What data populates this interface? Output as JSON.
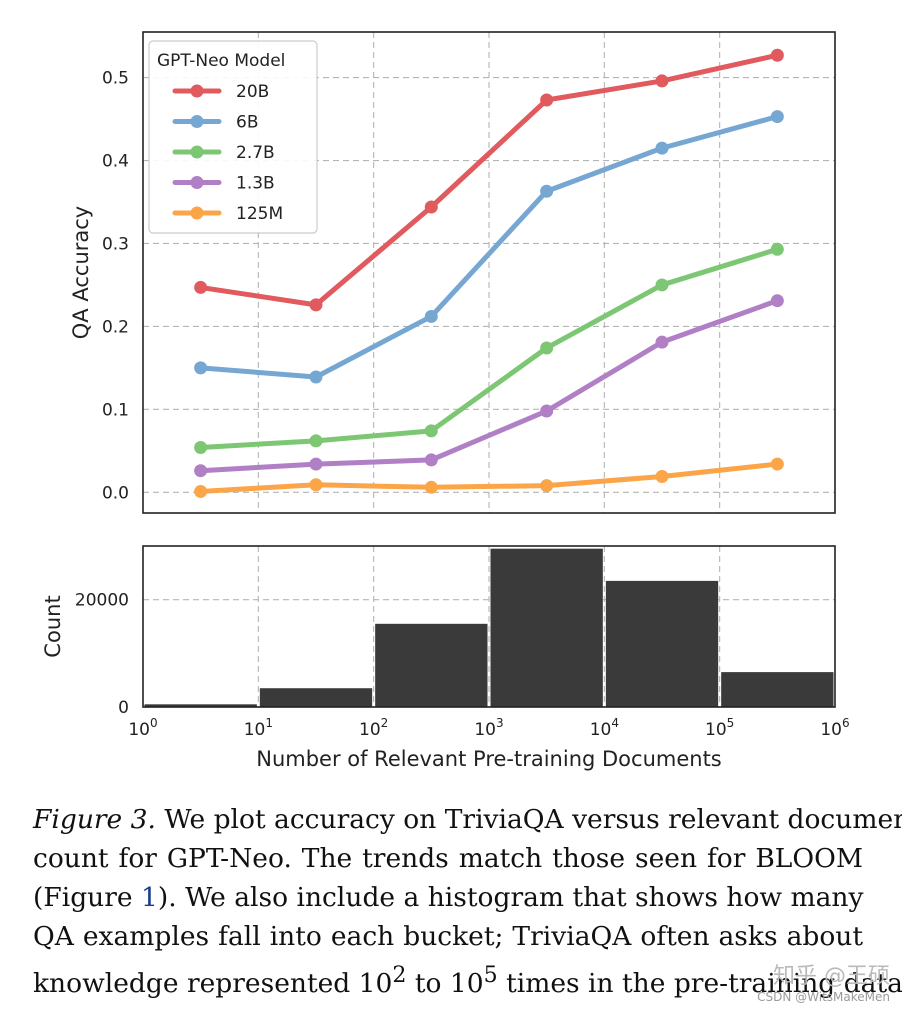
{
  "chart_data": [
    {
      "type": "line",
      "ylabel": "QA Accuracy",
      "ylim": [
        -0.025,
        0.555
      ],
      "yticks": [
        0.0,
        0.1,
        0.2,
        0.3,
        0.4,
        0.5
      ],
      "ytick_labels": [
        "0.0",
        "0.1",
        "0.2",
        "0.3",
        "0.4",
        "0.5"
      ],
      "xscale": "log",
      "x": [
        3.16,
        31.6,
        316,
        3162,
        31623,
        316228
      ],
      "grid": true,
      "legend": {
        "title": "GPT-Neo Model",
        "placement": "top-left"
      },
      "series": [
        {
          "name": "20B",
          "color": "#e05a5e",
          "values": [
            0.247,
            0.226,
            0.344,
            0.473,
            0.496,
            0.527
          ]
        },
        {
          "name": "6B",
          "color": "#76a7d2",
          "values": [
            0.15,
            0.139,
            0.212,
            0.363,
            0.415,
            0.453
          ]
        },
        {
          "name": "2.7B",
          "color": "#7dc774",
          "values": [
            0.054,
            0.062,
            0.074,
            0.174,
            0.25,
            0.293
          ]
        },
        {
          "name": "1.3B",
          "color": "#b07fc6",
          "values": [
            0.026,
            0.034,
            0.039,
            0.098,
            0.181,
            0.231
          ]
        },
        {
          "name": "125M",
          "color": "#fba548",
          "values": [
            0.001,
            0.009,
            0.006,
            0.008,
            0.019,
            0.034
          ]
        }
      ]
    },
    {
      "type": "bar",
      "ylabel": "Count",
      "xlabel": "Number of Relevant Pre-training Documents",
      "xscale": "log",
      "xlim": [
        1,
        1000000
      ],
      "ylim": [
        0,
        30000
      ],
      "yticks": [
        0,
        20000
      ],
      "ytick_labels": [
        "0",
        "20000"
      ],
      "xtick_labels": [
        {
          "base": "10",
          "exp": "0"
        },
        {
          "base": "10",
          "exp": "1"
        },
        {
          "base": "10",
          "exp": "2"
        },
        {
          "base": "10",
          "exp": "3"
        },
        {
          "base": "10",
          "exp": "4"
        },
        {
          "base": "10",
          "exp": "5"
        },
        {
          "base": "10",
          "exp": "6"
        }
      ],
      "bin_edges": [
        1,
        10,
        100,
        1000,
        10000,
        100000,
        1000000
      ],
      "values": [
        500,
        3500,
        15500,
        29500,
        23500,
        6500
      ],
      "color": "#3a3a3a",
      "grid": true
    }
  ],
  "caption": {
    "figure_label": "Figure 3.",
    "line1": "We plot accuracy on TriviaQA versus relevant document",
    "line2": "count for GPT-Neo.  The trends match those seen for BLOOM",
    "line3_pre": "(Figure ",
    "line3_ref": "1",
    "line3_post": ").  We also include a histogram that shows how many",
    "line4": "QA examples fall into each bucket; TriviaQA often asks about",
    "line5_a": "knowledge represented 10",
    "line5_exp1": "2",
    "line5_b": " to 10",
    "line5_exp2": "5",
    "line5_c": " times in the pre-training data."
  },
  "watermark": {
    "primary": "知乎 @王硕",
    "secondary": "CSDN @WitsMakeMen"
  }
}
